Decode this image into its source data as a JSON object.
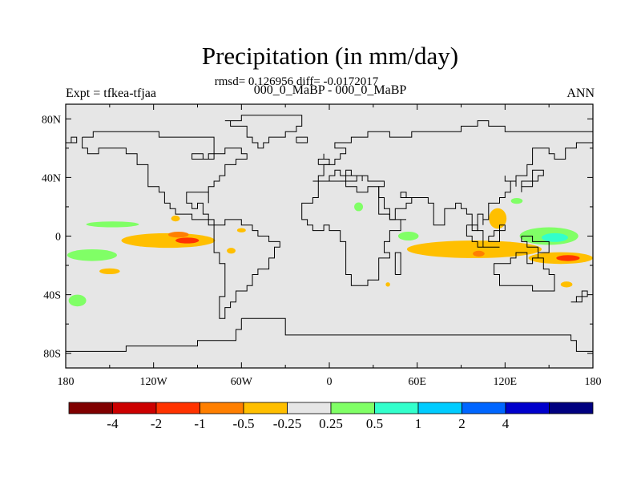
{
  "title": "Precipitation (in mm/day)",
  "stats": "rmsd= 0.126956 diff= -0.0172017",
  "runs": "000_0_MaBP - 000_0_MaBP",
  "experiment": "Expt = tfkea-tfjaa",
  "season": "ANN",
  "map": {
    "projection": "cylindrical-equidistant",
    "lon_range": [
      -180,
      180
    ],
    "lat_range": [
      -90,
      90
    ],
    "background": "#e6e6e6",
    "lat_ticks": [
      "80N",
      "40N",
      "0",
      "40S",
      "80S"
    ],
    "lon_ticks": [
      "180",
      "120W",
      "60W",
      "0",
      "60E",
      "120E",
      "180"
    ]
  },
  "colorbar": {
    "colors": [
      "#800000",
      "#cc0000",
      "#ff3300",
      "#ff7f00",
      "#ffbf00",
      "#e6e6e6",
      "#80ff66",
      "#33ffcc",
      "#00ccff",
      "#0066ff",
      "#0000cc",
      "#000080"
    ],
    "labels": [
      "-4",
      "-2",
      "-1",
      "-0.5",
      "-0.25",
      "0.25",
      "0.5",
      "1",
      "2",
      "4"
    ]
  },
  "anomalies": [
    {
      "lon": -148,
      "lat": 8,
      "rx": 18,
      "ry": 2,
      "color": "#80ff66"
    },
    {
      "lon": -162,
      "lat": -13,
      "rx": 17,
      "ry": 4,
      "color": "#80ff66"
    },
    {
      "lon": -172,
      "lat": -44,
      "rx": 6,
      "ry": 4,
      "color": "#80ff66"
    },
    {
      "lon": -150,
      "lat": -24,
      "rx": 7,
      "ry": 2,
      "color": "#ffbf00"
    },
    {
      "lon": -110,
      "lat": -3,
      "rx": 32,
      "ry": 5,
      "color": "#ffbf00"
    },
    {
      "lon": -103,
      "lat": 1,
      "rx": 7,
      "ry": 2,
      "color": "#ff7f00"
    },
    {
      "lon": -97,
      "lat": -3,
      "rx": 8,
      "ry": 2,
      "color": "#ff3300"
    },
    {
      "lon": -67,
      "lat": -10,
      "rx": 3,
      "ry": 2,
      "color": "#ffbf00"
    },
    {
      "lon": -60,
      "lat": 4,
      "rx": 3,
      "ry": 1.5,
      "color": "#ffbf00"
    },
    {
      "lon": -105,
      "lat": 12,
      "rx": 3,
      "ry": 2,
      "color": "#ffbf00"
    },
    {
      "lon": 20,
      "lat": 20,
      "rx": 3,
      "ry": 3,
      "color": "#80ff66"
    },
    {
      "lon": 54,
      "lat": 0,
      "rx": 7,
      "ry": 3,
      "color": "#80ff66"
    },
    {
      "lon": 99,
      "lat": -9,
      "rx": 46,
      "ry": 6,
      "color": "#ffbf00"
    },
    {
      "lon": 115,
      "lat": 12,
      "rx": 6,
      "ry": 7,
      "color": "#ffbf00"
    },
    {
      "lon": 102,
      "lat": -12,
      "rx": 4,
      "ry": 2,
      "color": "#ff7f00"
    },
    {
      "lon": 150,
      "lat": 0,
      "rx": 20,
      "ry": 6,
      "color": "#80ff66"
    },
    {
      "lon": 154,
      "lat": -1,
      "rx": 9,
      "ry": 3,
      "color": "#33ffcc"
    },
    {
      "lon": 158,
      "lat": -15,
      "rx": 22,
      "ry": 4,
      "color": "#ffbf00"
    },
    {
      "lon": 163,
      "lat": -15,
      "rx": 8,
      "ry": 2,
      "color": "#ff3300"
    },
    {
      "lon": 162,
      "lat": -33,
      "rx": 4,
      "ry": 2,
      "color": "#ffbf00"
    },
    {
      "lon": 128,
      "lat": 24,
      "rx": 4,
      "ry": 2,
      "color": "#80ff66"
    },
    {
      "lon": 40,
      "lat": -33,
      "rx": 1.5,
      "ry": 1.5,
      "color": "#ffbf00"
    }
  ],
  "coastlines": [
    [
      [
        -168,
        66
      ],
      [
        -162,
        70
      ],
      [
        -152,
        71
      ],
      [
        -140,
        70
      ],
      [
        -128,
        70
      ],
      [
        -118,
        69
      ],
      [
        -110,
        68
      ],
      [
        -98,
        68
      ],
      [
        -90,
        69
      ],
      [
        -85,
        66
      ],
      [
        -80,
        62
      ],
      [
        -78,
        57
      ],
      [
        -82,
        53
      ],
      [
        -88,
        56
      ],
      [
        -94,
        58
      ],
      [
        -92,
        54
      ],
      [
        -80,
        52
      ],
      [
        -78,
        58
      ],
      [
        -72,
        61
      ],
      [
        -64,
        60
      ],
      [
        -60,
        55
      ],
      [
        -56,
        52
      ],
      [
        -64,
        47
      ],
      [
        -70,
        43
      ],
      [
        -74,
        40
      ],
      [
        -76,
        36
      ],
      [
        -80,
        32
      ],
      [
        -81,
        26
      ],
      [
        -82,
        24
      ],
      [
        -84,
        30
      ],
      [
        -90,
        30
      ],
      [
        -97,
        27
      ],
      [
        -97,
        22
      ],
      [
        -94,
        18
      ],
      [
        -90,
        21
      ],
      [
        -87,
        21
      ],
      [
        -88,
        16
      ],
      [
        -84,
        11
      ],
      [
        -80,
        8
      ],
      [
        -77,
        8
      ],
      [
        -72,
        11
      ],
      [
        -64,
        10
      ],
      [
        -60,
        8
      ],
      [
        -52,
        5
      ],
      [
        -48,
        0
      ],
      [
        -40,
        -3
      ],
      [
        -35,
        -7
      ],
      [
        -38,
        -14
      ],
      [
        -40,
        -21
      ],
      [
        -46,
        -24
      ],
      [
        -49,
        -28
      ],
      [
        -54,
        -34
      ],
      [
        -58,
        -38
      ],
      [
        -62,
        -40
      ],
      [
        -65,
        -45
      ],
      [
        -67,
        -48
      ],
      [
        -70,
        -53
      ],
      [
        -72,
        -55
      ],
      [
        -75,
        -50
      ],
      [
        -74,
        -42
      ],
      [
        -72,
        -33
      ],
      [
        -71,
        -25
      ],
      [
        -70,
        -18
      ],
      [
        -76,
        -12
      ],
      [
        -80,
        -5
      ],
      [
        -79,
        2
      ],
      [
        -78,
        8
      ],
      [
        -84,
        10
      ],
      [
        -88,
        13
      ],
      [
        -92,
        15
      ],
      [
        -97,
        16
      ],
      [
        -105,
        20
      ],
      [
        -110,
        24
      ],
      [
        -114,
        30
      ],
      [
        -117,
        32
      ],
      [
        -120,
        35
      ],
      [
        -124,
        40
      ],
      [
        -124,
        47
      ],
      [
        -126,
        50
      ],
      [
        -132,
        55
      ],
      [
        -140,
        59
      ],
      [
        -150,
        60
      ],
      [
        -158,
        57
      ],
      [
        -165,
        60
      ],
      [
        -168,
        66
      ]
    ],
    [
      [
        -73,
        79
      ],
      [
        -60,
        82
      ],
      [
        -40,
        83
      ],
      [
        -20,
        82
      ],
      [
        -20,
        74
      ],
      [
        -22,
        70
      ],
      [
        -30,
        68
      ],
      [
        -40,
        65
      ],
      [
        -44,
        60
      ],
      [
        -50,
        64
      ],
      [
        -54,
        68
      ],
      [
        -58,
        75
      ],
      [
        -68,
        77
      ],
      [
        -73,
        79
      ]
    ],
    [
      [
        -10,
        36
      ],
      [
        -9,
        43
      ],
      [
        -2,
        44
      ],
      [
        -4,
        48
      ],
      [
        2,
        51
      ],
      [
        5,
        53
      ],
      [
        8,
        54
      ],
      [
        8,
        57
      ],
      [
        12,
        56
      ],
      [
        10,
        59
      ],
      [
        5,
        62
      ],
      [
        10,
        64
      ],
      [
        15,
        69
      ],
      [
        25,
        71
      ],
      [
        30,
        70
      ],
      [
        40,
        67
      ],
      [
        45,
        68
      ],
      [
        55,
        70
      ],
      [
        60,
        70
      ],
      [
        70,
        73
      ],
      [
        80,
        73
      ],
      [
        90,
        75
      ],
      [
        100,
        77
      ],
      [
        110,
        76
      ],
      [
        120,
        73
      ],
      [
        130,
        71
      ],
      [
        140,
        72
      ],
      [
        150,
        71
      ],
      [
        160,
        70
      ],
      [
        170,
        70
      ],
      [
        180,
        68
      ],
      [
        180,
        65
      ],
      [
        178,
        62
      ],
      [
        170,
        60
      ],
      [
        163,
        58
      ],
      [
        160,
        53
      ],
      [
        156,
        51
      ],
      [
        155,
        57
      ],
      [
        150,
        59
      ],
      [
        143,
        59
      ],
      [
        137,
        55
      ],
      [
        140,
        48
      ],
      [
        135,
        43
      ],
      [
        130,
        42
      ],
      [
        129,
        35
      ],
      [
        126,
        35
      ],
      [
        126,
        39
      ],
      [
        121,
        40
      ],
      [
        119,
        37
      ],
      [
        122,
        31
      ],
      [
        120,
        26
      ],
      [
        116,
        23
      ],
      [
        110,
        21
      ],
      [
        108,
        18
      ],
      [
        107,
        10
      ],
      [
        104,
        9
      ],
      [
        105,
        14
      ],
      [
        101,
        13
      ],
      [
        100,
        7
      ],
      [
        103,
        2
      ],
      [
        101,
        3
      ],
      [
        98,
        8
      ],
      [
        98,
        16
      ],
      [
        95,
        16
      ],
      [
        93,
        20
      ],
      [
        90,
        22
      ],
      [
        86,
        20
      ],
      [
        80,
        15
      ],
      [
        80,
        10
      ],
      [
        77,
        8
      ],
      [
        73,
        16
      ],
      [
        72,
        22
      ],
      [
        68,
        23
      ],
      [
        66,
        25
      ],
      [
        60,
        25
      ],
      [
        56,
        27
      ],
      [
        52,
        28
      ],
      [
        48,
        30
      ],
      [
        51,
        25
      ],
      [
        56,
        24
      ],
      [
        58,
        22
      ],
      [
        54,
        17
      ],
      [
        44,
        12
      ],
      [
        40,
        16
      ],
      [
        35,
        27
      ],
      [
        33,
        30
      ],
      [
        35,
        34
      ],
      [
        36,
        37
      ],
      [
        30,
        36
      ],
      [
        27,
        40
      ],
      [
        26,
        41
      ],
      [
        23,
        38
      ],
      [
        22,
        40
      ],
      [
        20,
        42
      ],
      [
        16,
        42
      ],
      [
        13,
        45
      ],
      [
        14,
        41
      ],
      [
        17,
        39
      ],
      [
        16,
        38
      ],
      [
        12,
        42
      ],
      [
        8,
        44
      ],
      [
        4,
        43
      ],
      [
        0,
        40
      ],
      [
        -1,
        37
      ],
      [
        -6,
        37
      ],
      [
        -10,
        36
      ]
    ],
    [
      [
        -17,
        15
      ],
      [
        -17,
        21
      ],
      [
        -13,
        28
      ],
      [
        -9,
        32
      ],
      [
        -6,
        36
      ],
      [
        0,
        36
      ],
      [
        10,
        37
      ],
      [
        11,
        33
      ],
      [
        20,
        31
      ],
      [
        25,
        32
      ],
      [
        32,
        31
      ],
      [
        34,
        28
      ],
      [
        38,
        20
      ],
      [
        43,
        12
      ],
      [
        51,
        12
      ],
      [
        51,
        10
      ],
      [
        48,
        5
      ],
      [
        42,
        -1
      ],
      [
        40,
        -5
      ],
      [
        39,
        -10
      ],
      [
        40,
        -15
      ],
      [
        35,
        -20
      ],
      [
        35,
        -24
      ],
      [
        33,
        -26
      ],
      [
        32,
        -29
      ],
      [
        28,
        -33
      ],
      [
        20,
        -35
      ],
      [
        18,
        -32
      ],
      [
        15,
        -27
      ],
      [
        12,
        -18
      ],
      [
        13,
        -12
      ],
      [
        12,
        -5
      ],
      [
        9,
        0
      ],
      [
        9,
        4
      ],
      [
        5,
        5
      ],
      [
        0,
        6
      ],
      [
        -5,
        5
      ],
      [
        -8,
        4
      ],
      [
        -11,
        7
      ],
      [
        -15,
        11
      ],
      [
        -17,
        15
      ]
    ],
    [
      [
        114,
        -22
      ],
      [
        114,
        -26
      ],
      [
        116,
        -33
      ],
      [
        120,
        -34
      ],
      [
        124,
        -34
      ],
      [
        130,
        -32
      ],
      [
        135,
        -35
      ],
      [
        138,
        -35
      ],
      [
        140,
        -38
      ],
      [
        146,
        -39
      ],
      [
        150,
        -37
      ],
      [
        152,
        -32
      ],
      [
        153,
        -28
      ],
      [
        153,
        -25
      ],
      [
        150,
        -22
      ],
      [
        146,
        -19
      ],
      [
        145,
        -15
      ],
      [
        142,
        -11
      ],
      [
        141,
        -15
      ],
      [
        139,
        -17
      ],
      [
        136,
        -15
      ],
      [
        136,
        -12
      ],
      [
        132,
        -11
      ],
      [
        129,
        -15
      ],
      [
        126,
        -14
      ],
      [
        122,
        -18
      ],
      [
        117,
        -20
      ],
      [
        114,
        -22
      ]
    ],
    [
      [
        44,
        -25
      ],
      [
        47,
        -25
      ],
      [
        50,
        -15
      ],
      [
        49,
        -12
      ],
      [
        44,
        -16
      ],
      [
        44,
        -25
      ]
    ],
    [
      [
        -6,
        50
      ],
      [
        1,
        51
      ],
      [
        1,
        53
      ],
      [
        -2,
        56
      ],
      [
        -5,
        58
      ],
      [
        -4,
        56
      ],
      [
        -5,
        54
      ],
      [
        -3,
        53
      ],
      [
        -5,
        52
      ],
      [
        -6,
        50
      ]
    ],
    [
      [
        95,
        6
      ],
      [
        100,
        2
      ],
      [
        104,
        -2
      ],
      [
        106,
        -6
      ],
      [
        102,
        -5
      ],
      [
        98,
        0
      ],
      [
        95,
        6
      ]
    ],
    [
      [
        105,
        -6
      ],
      [
        110,
        -7
      ],
      [
        115,
        -8
      ],
      [
        108,
        -8
      ],
      [
        105,
        -6
      ]
    ],
    [
      [
        109,
        1
      ],
      [
        111,
        3
      ],
      [
        117,
        7
      ],
      [
        119,
        5
      ],
      [
        118,
        1
      ],
      [
        116,
        -4
      ],
      [
        110,
        -3
      ],
      [
        109,
        1
      ]
    ],
    [
      [
        131,
        -1
      ],
      [
        138,
        -2
      ],
      [
        144,
        -4
      ],
      [
        150,
        -10
      ],
      [
        144,
        -8
      ],
      [
        141,
        -9
      ],
      [
        136,
        -5
      ],
      [
        131,
        -1
      ]
    ],
    [
      [
        130,
        31
      ],
      [
        132,
        34
      ],
      [
        136,
        34
      ],
      [
        140,
        36
      ],
      [
        141,
        40
      ],
      [
        142,
        43
      ],
      [
        145,
        44
      ],
      [
        140,
        43
      ],
      [
        138,
        37
      ],
      [
        132,
        33
      ],
      [
        130,
        31
      ]
    ],
    [
      [
        -60,
        -56
      ],
      [
        -30,
        -66
      ],
      [
        0,
        -69
      ],
      [
        30,
        -69
      ],
      [
        60,
        -67
      ],
      [
        90,
        -66
      ],
      [
        120,
        -66
      ],
      [
        150,
        -68
      ],
      [
        165,
        -72
      ],
      [
        170,
        -78
      ],
      [
        180,
        -78
      ],
      [
        180,
        -90
      ],
      [
        -180,
        -90
      ],
      [
        -180,
        -78
      ],
      [
        -160,
        -78
      ],
      [
        -140,
        -76
      ],
      [
        -110,
        -74
      ],
      [
        -90,
        -72
      ],
      [
        -75,
        -70
      ],
      [
        -64,
        -64
      ],
      [
        -60,
        -56
      ]
    ],
    [
      [
        166,
        -46
      ],
      [
        172,
        -41
      ],
      [
        175,
        -37
      ],
      [
        178,
        -38
      ],
      [
        174,
        -42
      ],
      [
        170,
        -46
      ],
      [
        166,
        -46
      ]
    ],
    [
      [
        -180,
        65
      ],
      [
        -176,
        67
      ],
      [
        -171,
        66
      ],
      [
        -174,
        63
      ],
      [
        -180,
        65
      ]
    ],
    [
      [
        -24,
        64
      ],
      [
        -22,
        66
      ],
      [
        -15,
        66
      ],
      [
        -14,
        65
      ],
      [
        -18,
        63
      ],
      [
        -24,
        64
      ]
    ]
  ]
}
